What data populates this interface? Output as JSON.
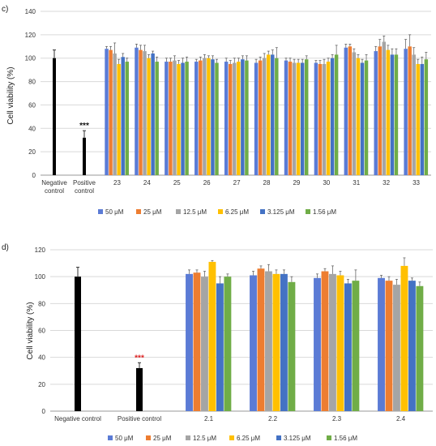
{
  "colors": {
    "grid": "#d9d9d9",
    "axis": "#999999",
    "black": "#000000",
    "series": [
      "#5b7bd5",
      "#ed7d31",
      "#a5a5a5",
      "#ffc000",
      "#4472c4",
      "#70ad47"
    ]
  },
  "chart_data": [
    {
      "type": "bar",
      "panel": "c)",
      "ylabel": "Cell viability (%)",
      "ylim": [
        0,
        140
      ],
      "yticks": [
        0,
        20,
        40,
        60,
        80,
        100,
        120,
        140
      ],
      "grid": true,
      "legend": "bottom",
      "controls": [
        {
          "label": "Negative control",
          "value": 100,
          "error": 7,
          "significance": ""
        },
        {
          "label": "Positive control",
          "value": 32,
          "error": 6,
          "significance": "***"
        }
      ],
      "categories": [
        "23",
        "24",
        "25",
        "26",
        "27",
        "28",
        "29",
        "30",
        "31",
        "32",
        "33"
      ],
      "series": [
        {
          "name": "50 μM",
          "values": [
            108,
            109,
            97,
            97,
            97,
            96,
            98,
            96,
            109,
            106,
            108
          ],
          "errors": [
            2,
            3,
            3,
            2,
            3,
            3,
            2,
            2,
            3,
            4,
            8
          ]
        },
        {
          "name": "25 μM",
          "values": [
            107,
            107,
            97,
            98,
            95,
            98,
            97,
            95,
            110,
            110,
            110
          ],
          "errors": [
            3,
            4,
            3,
            3,
            3,
            3,
            3,
            3,
            2,
            6,
            10
          ]
        },
        {
          "name": "12.5 μM",
          "values": [
            104,
            106,
            98,
            100,
            96,
            100,
            96,
            95,
            105,
            114,
            103
          ],
          "errors": [
            9,
            5,
            4,
            3,
            4,
            4,
            3,
            4,
            3,
            5,
            6
          ]
        },
        {
          "name": "6.25 μM",
          "values": [
            95,
            100,
            95,
            100,
            97,
            103,
            96,
            97,
            100,
            107,
            95
          ],
          "errors": [
            4,
            3,
            3,
            2,
            3,
            3,
            3,
            3,
            3,
            4,
            4
          ]
        },
        {
          "name": "3.125 μM",
          "values": [
            101,
            104,
            96,
            99,
            99,
            103,
            96,
            100,
            96,
            103,
            95
          ],
          "errors": [
            3,
            2,
            4,
            3,
            3,
            4,
            3,
            3,
            3,
            5,
            6
          ]
        },
        {
          "name": "1.56 μM",
          "values": [
            97,
            97,
            97,
            96,
            98,
            100,
            99,
            103,
            98,
            103,
            99
          ],
          "errors": [
            3,
            4,
            4,
            3,
            4,
            9,
            3,
            8,
            5,
            5,
            6
          ]
        }
      ]
    },
    {
      "type": "bar",
      "panel": "d)",
      "ylabel": "Cell viability (%)",
      "ylim": [
        0,
        120
      ],
      "yticks": [
        0,
        20,
        40,
        60,
        80,
        100,
        120
      ],
      "grid": true,
      "legend": "bottom",
      "controls": [
        {
          "label": "Negative control",
          "value": 100,
          "error": 7,
          "significance": ""
        },
        {
          "label": "Positive control",
          "value": 32,
          "error": 4,
          "significance": "***"
        }
      ],
      "categories": [
        "2.1",
        "2.2",
        "2.3",
        "2.4"
      ],
      "series": [
        {
          "name": "50 μM",
          "values": [
            102,
            101,
            99,
            99
          ],
          "errors": [
            3,
            3,
            3,
            2
          ]
        },
        {
          "name": "25 μM",
          "values": [
            103,
            106,
            104,
            97
          ],
          "errors": [
            2,
            2,
            2,
            3
          ]
        },
        {
          "name": "12.5 μM",
          "values": [
            100,
            104,
            102,
            94
          ],
          "errors": [
            4,
            5,
            6,
            4
          ]
        },
        {
          "name": "6.25 μM",
          "values": [
            111,
            102,
            101,
            108
          ],
          "errors": [
            1,
            3,
            3,
            6
          ]
        },
        {
          "name": "3.125 μM",
          "values": [
            95,
            102,
            95,
            97
          ],
          "errors": [
            5,
            3,
            3,
            2
          ]
        },
        {
          "name": "1.56 μM",
          "values": [
            100,
            96,
            97,
            93
          ],
          "errors": [
            2,
            4,
            8,
            3
          ]
        }
      ]
    }
  ]
}
